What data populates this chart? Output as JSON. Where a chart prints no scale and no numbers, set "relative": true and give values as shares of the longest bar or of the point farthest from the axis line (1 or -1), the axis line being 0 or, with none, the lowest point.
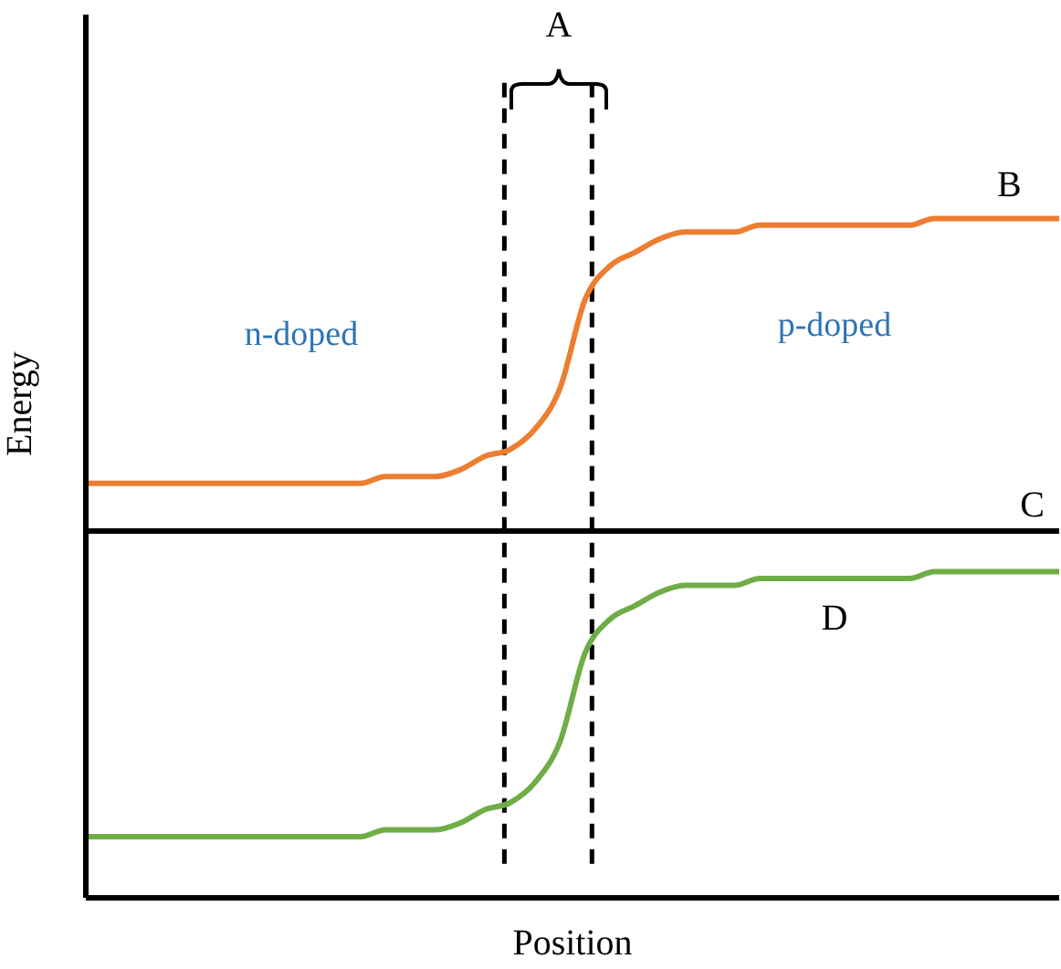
{
  "chart_data": {
    "type": "line",
    "relative": true,
    "xlabel": "Position",
    "ylabel": "Energy",
    "categories": [
      null,
      null,
      null,
      null,
      null,
      null,
      null,
      null,
      null,
      null,
      null,
      null,
      null,
      null,
      null,
      null,
      null,
      null,
      null,
      null,
      null,
      null,
      null,
      null,
      null,
      null,
      null,
      null,
      null,
      null,
      null,
      null,
      null,
      null,
      null,
      null,
      null,
      null,
      null,
      null
    ],
    "series": [
      {
        "name": "B",
        "color": "#ed7d31",
        "values": [
          0.61,
          0.61,
          0.61,
          0.61,
          0.61,
          0.61,
          0.61,
          0.61,
          0.61,
          0.61,
          0.61,
          0.61,
          0.62,
          0.62,
          0.62,
          0.63,
          0.65,
          0.66,
          0.69,
          0.75,
          0.88,
          0.93,
          0.95,
          0.97,
          0.98,
          0.98,
          0.98,
          0.99,
          0.99,
          0.99,
          0.99,
          0.99,
          0.99,
          0.99,
          1,
          1,
          1,
          1,
          1,
          1
        ]
      },
      {
        "name": "D",
        "color": "#70ad47",
        "values": [
          0.09,
          0.09,
          0.09,
          0.09,
          0.09,
          0.09,
          0.09,
          0.09,
          0.09,
          0.09,
          0.09,
          0.09,
          0.1,
          0.1,
          0.1,
          0.11,
          0.13,
          0.14,
          0.17,
          0.23,
          0.36,
          0.41,
          0.43,
          0.45,
          0.46,
          0.46,
          0.46,
          0.47,
          0.47,
          0.47,
          0.47,
          0.47,
          0.47,
          0.47,
          0.48,
          0.48,
          0.48,
          0.48,
          0.48,
          0.48
        ]
      }
    ],
    "ref_lines": [
      {
        "axis": "y",
        "value": 0.54,
        "label": "C",
        "color": "#000000",
        "line_style": "solid"
      }
    ],
    "annotations": [
      "A",
      "n-doped",
      "p-doped"
    ],
    "grid": false,
    "legend": false,
    "marker": "none",
    "line_style": "solid"
  }
}
